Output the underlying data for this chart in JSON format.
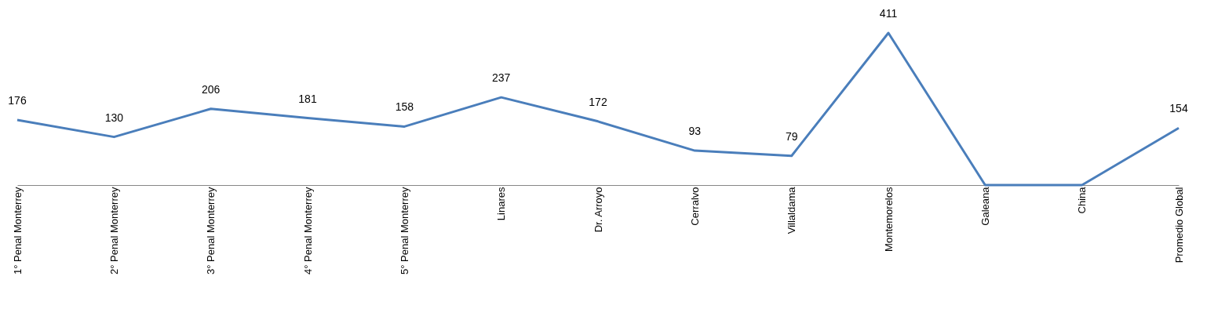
{
  "chart_data": {
    "type": "line",
    "categories": [
      "1° Penal Monterrey",
      "2° Penal Monterrey",
      "3° Penal Monterrey",
      "4° Penal Monterrey",
      "5° Penal Monterrey",
      "Linares",
      "Dr. Arroyo",
      "Cerralvo",
      "Villaldama",
      "Montemorelos",
      "Galeana",
      "China",
      "Promedio Global"
    ],
    "series": [
      {
        "color": "#4a7ebb",
        "values": [
          176,
          130,
          206,
          181,
          158,
          237,
          172,
          93,
          79,
          411,
          0,
          0,
          154
        ],
        "value_labels": [
          "176",
          "130",
          "206",
          "181",
          "158",
          "237",
          "172",
          "93",
          "79",
          "411",
          null,
          null,
          "154"
        ]
      }
    ],
    "ylim": [
      0,
      500
    ],
    "tick_labels": "x",
    "grid": false,
    "marker": "none",
    "line_style": "solid"
  }
}
